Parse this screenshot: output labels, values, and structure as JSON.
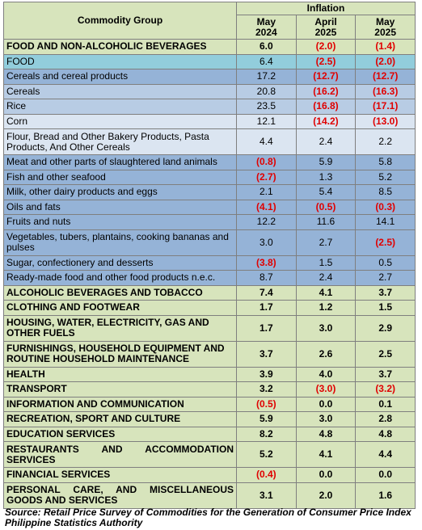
{
  "table": {
    "group_header": "Commodity Group",
    "super_header": "Inflation",
    "columns": [
      {
        "month": "May",
        "year": "2024"
      },
      {
        "month": "April",
        "year": "2025"
      },
      {
        "month": "May",
        "year": "2025"
      }
    ],
    "rows": [
      {
        "label": "FOOD AND NON-ALCOHOLIC BEVERAGES",
        "values": [
          "6.0",
          "(2.0)",
          "(1.4)"
        ]
      },
      {
        "label": "FOOD",
        "values": [
          "6.4",
          "(2.5)",
          "(2.0)"
        ]
      },
      {
        "label": "Cereals and cereal products",
        "values": [
          "17.2",
          "(12.7)",
          "(12.7)"
        ]
      },
      {
        "label": "Cereals",
        "values": [
          "20.8",
          "(16.2)",
          "(16.3)"
        ]
      },
      {
        "label": "Rice",
        "values": [
          "23.5",
          "(16.8)",
          "(17.1)"
        ]
      },
      {
        "label": "Corn",
        "values": [
          "12.1",
          "(14.2)",
          "(13.0)"
        ]
      },
      {
        "label": "Flour, Bread and Other Bakery Products, Pasta Products, And Other Cereals",
        "values": [
          "4.4",
          "2.4",
          "2.2"
        ]
      },
      {
        "label": "Meat and other parts of slaughtered land animals",
        "values": [
          "(0.8)",
          "5.9",
          "5.8"
        ]
      },
      {
        "label": "Fish and other seafood",
        "values": [
          "(2.7)",
          "1.3",
          "5.2"
        ]
      },
      {
        "label": "Milk, other dairy products and eggs",
        "values": [
          "2.1",
          "5.4",
          "8.5"
        ]
      },
      {
        "label": "Oils and fats",
        "values": [
          "(4.1)",
          "(0.5)",
          "(0.3)"
        ]
      },
      {
        "label": "Fruits and nuts",
        "values": [
          "12.2",
          "11.6",
          "14.1"
        ]
      },
      {
        "label": "Vegetables, tubers, plantains, cooking bananas and pulses",
        "values": [
          "3.0",
          "2.7",
          "(2.5)"
        ]
      },
      {
        "label": "Sugar, confectionery and desserts",
        "values": [
          "(3.8)",
          "1.5",
          "0.5"
        ]
      },
      {
        "label": "Ready-made food and other food products n.e.c.",
        "values": [
          "8.7",
          "2.4",
          "2.7"
        ]
      },
      {
        "label": "ALCOHOLIC BEVERAGES AND TOBACCO",
        "values": [
          "7.4",
          "4.1",
          "3.7"
        ]
      },
      {
        "label": "CLOTHING AND FOOTWEAR",
        "values": [
          "1.7",
          "1.2",
          "1.5"
        ]
      },
      {
        "label": "HOUSING, WATER, ELECTRICITY, GAS AND OTHER FUELS",
        "values": [
          "1.7",
          "3.0",
          "2.9"
        ]
      },
      {
        "label": "FURNISHINGS, HOUSEHOLD EQUIPMENT AND ROUTINE HOUSEHOLD MAINTENANCE",
        "values": [
          "3.7",
          "2.6",
          "2.5"
        ]
      },
      {
        "label": "HEALTH",
        "values": [
          "3.9",
          "4.0",
          "3.7"
        ]
      },
      {
        "label": "TRANSPORT",
        "values": [
          "3.2",
          "(3.0)",
          "(3.2)"
        ]
      },
      {
        "label": "INFORMATION AND COMMUNICATION",
        "values": [
          "(0.5)",
          "0.0",
          "0.1"
        ]
      },
      {
        "label": "RECREATION, SPORT AND CULTURE",
        "values": [
          "5.9",
          "3.0",
          "2.8"
        ]
      },
      {
        "label": "EDUCATION SERVICES",
        "values": [
          "8.2",
          "4.8",
          "4.8"
        ]
      },
      {
        "label": "RESTAURANTS AND ACCOMMODATION SERVICES",
        "values": [
          "5.2",
          "4.1",
          "4.4"
        ]
      },
      {
        "label": "FINANCIAL SERVICES",
        "values": [
          "(0.4)",
          "0.0",
          "0.0"
        ]
      },
      {
        "label": "PERSONAL CARE, AND MISCELLANEOUS GOODS AND SERVICES",
        "values": [
          "3.1",
          "2.0",
          "1.6"
        ]
      }
    ]
  },
  "source": "Source: Retail Price Survey of Commodities for the Generation of Consumer Price Index Philippine Statistics Authority"
}
